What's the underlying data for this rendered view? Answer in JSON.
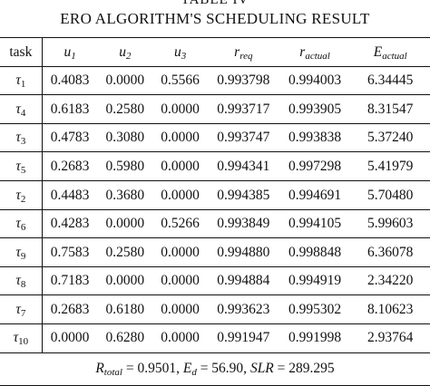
{
  "table_label": "TABLE IV",
  "caption": "ERO ALGORITHM'S SCHEDULING RESULT",
  "headers": [
    {
      "main": "task",
      "sub": ""
    },
    {
      "main": "u",
      "sub": "1"
    },
    {
      "main": "u",
      "sub": "2"
    },
    {
      "main": "u",
      "sub": "3"
    },
    {
      "main": "r",
      "sub": "req"
    },
    {
      "main": "r",
      "sub": "actual"
    },
    {
      "main": "E",
      "sub": "actual"
    }
  ],
  "rows": [
    {
      "task": "τ",
      "task_sub": "1",
      "cells": [
        "0.4083",
        "0.0000",
        "0.5566",
        "0.993798",
        "0.994003",
        "6.34445"
      ]
    },
    {
      "task": "τ",
      "task_sub": "4",
      "cells": [
        "0.6183",
        "0.2580",
        "0.0000",
        "0.993717",
        "0.993905",
        "8.31547"
      ]
    },
    {
      "task": "τ",
      "task_sub": "3",
      "cells": [
        "0.4783",
        "0.3080",
        "0.0000",
        "0.993747",
        "0.993838",
        "5.37240"
      ]
    },
    {
      "task": "τ",
      "task_sub": "5",
      "cells": [
        "0.2683",
        "0.5980",
        "0.0000",
        "0.994341",
        "0.997298",
        "5.41979"
      ]
    },
    {
      "task": "τ",
      "task_sub": "2",
      "cells": [
        "0.4483",
        "0.3680",
        "0.0000",
        "0.994385",
        "0.994691",
        "5.70480"
      ]
    },
    {
      "task": "τ",
      "task_sub": "6",
      "cells": [
        "0.4283",
        "0.0000",
        "0.5266",
        "0.993849",
        "0.994105",
        "5.99603"
      ]
    },
    {
      "task": "τ",
      "task_sub": "9",
      "cells": [
        "0.7583",
        "0.2580",
        "0.0000",
        "0.994880",
        "0.998848",
        "6.36078"
      ]
    },
    {
      "task": "τ",
      "task_sub": "8",
      "cells": [
        "0.7183",
        "0.0000",
        "0.0000",
        "0.994884",
        "0.994919",
        "2.34220"
      ]
    },
    {
      "task": "τ",
      "task_sub": "7",
      "cells": [
        "0.2683",
        "0.6180",
        "0.0000",
        "0.993623",
        "0.995302",
        "8.10623"
      ]
    },
    {
      "task": "τ",
      "task_sub": "10",
      "cells": [
        "0.0000",
        "0.6280",
        "0.0000",
        "0.991947",
        "0.991998",
        "2.93764"
      ]
    }
  ],
  "footer": {
    "r_sym": "R",
    "r_sub": "total",
    "r_val": " = 0.9501, ",
    "e_sym": "E",
    "e_sub": "d",
    "e_val": " = 56.90, ",
    "slr_sym": "SLR",
    "slr_val": " = 289.295"
  }
}
